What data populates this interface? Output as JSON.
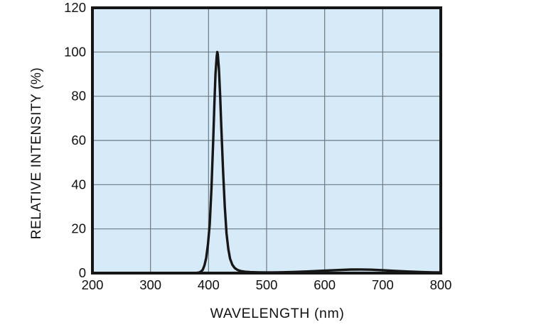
{
  "figure": {
    "background": "#ffffff"
  },
  "chart_data": {
    "type": "line",
    "title": "",
    "xlabel": "WAVELENGTH (nm)",
    "ylabel": "RELATIVE INTENSITY (%)",
    "xlim": [
      200,
      800
    ],
    "ylim": [
      0,
      120
    ],
    "x_ticks": [
      200,
      300,
      400,
      500,
      600,
      700,
      800
    ],
    "y_ticks": [
      0,
      20,
      40,
      60,
      80,
      100,
      120
    ],
    "grid": true,
    "legend": "none",
    "plot_bg_color": "#d7eaf7",
    "grid_color": "#6d7a83",
    "line_color": "#161616",
    "frame_color": "#161616",
    "tick_label_color": "#111111",
    "peak_wavelength_nm": 415,
    "peak_intensity_pct": 100,
    "series": [
      {
        "name": "relative-intensity-spectrum",
        "points": [
          [
            200,
            0
          ],
          [
            240,
            0
          ],
          [
            280,
            0
          ],
          [
            320,
            0
          ],
          [
            350,
            0
          ],
          [
            365,
            0
          ],
          [
            375,
            0.05
          ],
          [
            380,
            0.1
          ],
          [
            384,
            0.3
          ],
          [
            387,
            0.7
          ],
          [
            390,
            1.5
          ],
          [
            393,
            3.5
          ],
          [
            396,
            7
          ],
          [
            399,
            13
          ],
          [
            402,
            22
          ],
          [
            405,
            38
          ],
          [
            408,
            60
          ],
          [
            410,
            76
          ],
          [
            412,
            90
          ],
          [
            414,
            98
          ],
          [
            415,
            100
          ],
          [
            416,
            99
          ],
          [
            418,
            92
          ],
          [
            420,
            80
          ],
          [
            422,
            66
          ],
          [
            425,
            46
          ],
          [
            428,
            30
          ],
          [
            431,
            18
          ],
          [
            434,
            11
          ],
          [
            437,
            6.5
          ],
          [
            441,
            3.8
          ],
          [
            445,
            2.3
          ],
          [
            450,
            1.4
          ],
          [
            456,
            0.9
          ],
          [
            463,
            0.6
          ],
          [
            472,
            0.45
          ],
          [
            485,
            0.35
          ],
          [
            500,
            0.3
          ],
          [
            520,
            0.35
          ],
          [
            545,
            0.5
          ],
          [
            570,
            0.75
          ],
          [
            595,
            1.05
          ],
          [
            620,
            1.35
          ],
          [
            645,
            1.6
          ],
          [
            662,
            1.65
          ],
          [
            680,
            1.55
          ],
          [
            700,
            1.3
          ],
          [
            722,
            1.0
          ],
          [
            745,
            0.7
          ],
          [
            765,
            0.5
          ],
          [
            785,
            0.35
          ],
          [
            800,
            0.3
          ]
        ]
      }
    ]
  }
}
